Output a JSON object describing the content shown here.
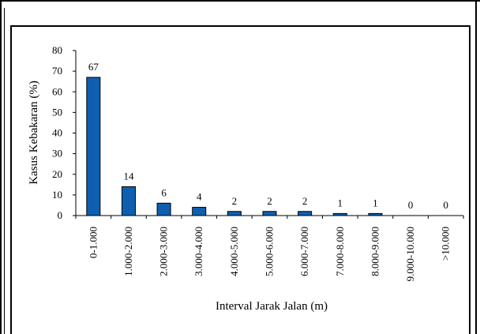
{
  "chart_data": {
    "type": "bar",
    "title": "",
    "xlabel": "Interval Jarak Jalan (m)",
    "ylabel": "Kasus Kebakaran (%)",
    "ylim": [
      0,
      80
    ],
    "yticks": [
      "0",
      "10",
      "20",
      "30",
      "40",
      "50",
      "60",
      "70",
      "80"
    ],
    "categories": [
      "0-1.000",
      "1.000-2.000",
      "2.000-3.000",
      "3.000-4.000",
      "4.000-5.000",
      "5.000-6.000",
      "6.000-7.000",
      "7.000-8.000",
      "8.000-9.000",
      "9.000-10.000",
      ">10.000"
    ],
    "values": [
      67,
      14,
      6,
      4,
      2,
      2,
      2,
      1,
      1,
      0,
      0
    ],
    "data_labels": [
      "67",
      "14",
      "6",
      "4",
      "2",
      "2",
      "2",
      "1",
      "1",
      "0",
      "0"
    ],
    "grid": false,
    "legend": "none",
    "bar_color": "#0f5fb0"
  }
}
